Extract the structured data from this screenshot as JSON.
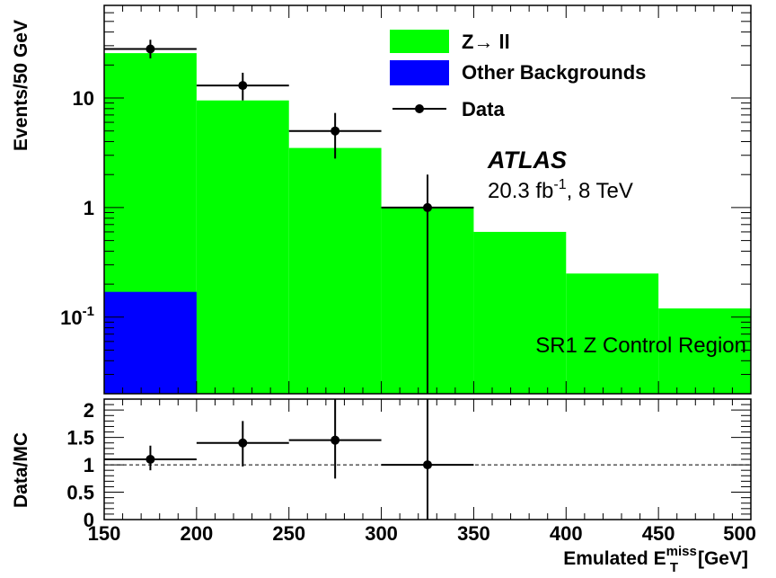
{
  "chart_data": [
    {
      "panel": "main",
      "type": "bar",
      "stacked": true,
      "ylabel": "Events/50 GeV",
      "yscale": "log",
      "xlim": [
        150,
        500
      ],
      "ylim": [
        0.02,
        70
      ],
      "y_ticks": [
        {
          "value": 0.1,
          "label": "10",
          "sup": "-1"
        },
        {
          "value": 1,
          "label": "1",
          "sup": ""
        },
        {
          "value": 10,
          "label": "10",
          "sup": ""
        }
      ],
      "bin_edges": [
        150,
        200,
        250,
        300,
        350,
        400,
        450,
        500
      ],
      "series": [
        {
          "name": "Z→ ll",
          "color": "#00ff00",
          "values": [
            25.5,
            9.5,
            3.5,
            1.0,
            0.6,
            0.25,
            0.12
          ]
        },
        {
          "name": "Other Backgrounds",
          "color": "#0000ff",
          "values": [
            0.17,
            0,
            0,
            0,
            0,
            0,
            0
          ]
        }
      ],
      "data": {
        "name": "Data",
        "points": [
          {
            "x": 175,
            "y": 28,
            "xerr": 25,
            "ylo": 23,
            "yhi": 34
          },
          {
            "x": 225,
            "y": 13,
            "xerr": 25,
            "ylo": 9.5,
            "yhi": 17
          },
          {
            "x": 275,
            "y": 5,
            "xerr": 25,
            "ylo": 2.8,
            "yhi": 7.3
          },
          {
            "x": 325,
            "y": 1,
            "xerr": 25,
            "ylo": 0.02,
            "yhi": 2.0
          }
        ]
      },
      "annotations": {
        "experiment": "ATLAS",
        "lumi_value": "20.3 fb",
        "lumi_sup": "-1",
        "lumi_suffix": ", 8 TeV",
        "region": "SR1 Z Control Region"
      },
      "legend_position": "top-right"
    },
    {
      "panel": "ratio",
      "type": "scatter",
      "ylabel": "Data/MC",
      "xlabel_prefix": "Emulated E",
      "xlabel_sup": "miss",
      "xlabel_sub": "T",
      "xlabel_suffix": "[GeV]",
      "xlim": [
        150,
        500
      ],
      "ylim": [
        0,
        2.2
      ],
      "x_ticks": [
        150,
        200,
        250,
        300,
        350,
        400,
        450,
        500
      ],
      "y_ticks": [
        {
          "value": 0,
          "label": "0"
        },
        {
          "value": 0.5,
          "label": "0.5"
        },
        {
          "value": 1,
          "label": "1"
        },
        {
          "value": 1.5,
          "label": "1.5"
        },
        {
          "value": 2,
          "label": "2"
        }
      ],
      "reference_line": 1,
      "points": [
        {
          "x": 175,
          "y": 1.1,
          "xerr": 25,
          "ylo": 0.9,
          "yhi": 1.35
        },
        {
          "x": 225,
          "y": 1.4,
          "xerr": 25,
          "ylo": 0.97,
          "yhi": 1.8
        },
        {
          "x": 275,
          "y": 1.45,
          "xerr": 25,
          "ylo": 0.75,
          "yhi": 2.2
        },
        {
          "x": 325,
          "y": 1.0,
          "xerr": 25,
          "ylo": 0.0,
          "yhi": 2.2
        }
      ]
    }
  ]
}
